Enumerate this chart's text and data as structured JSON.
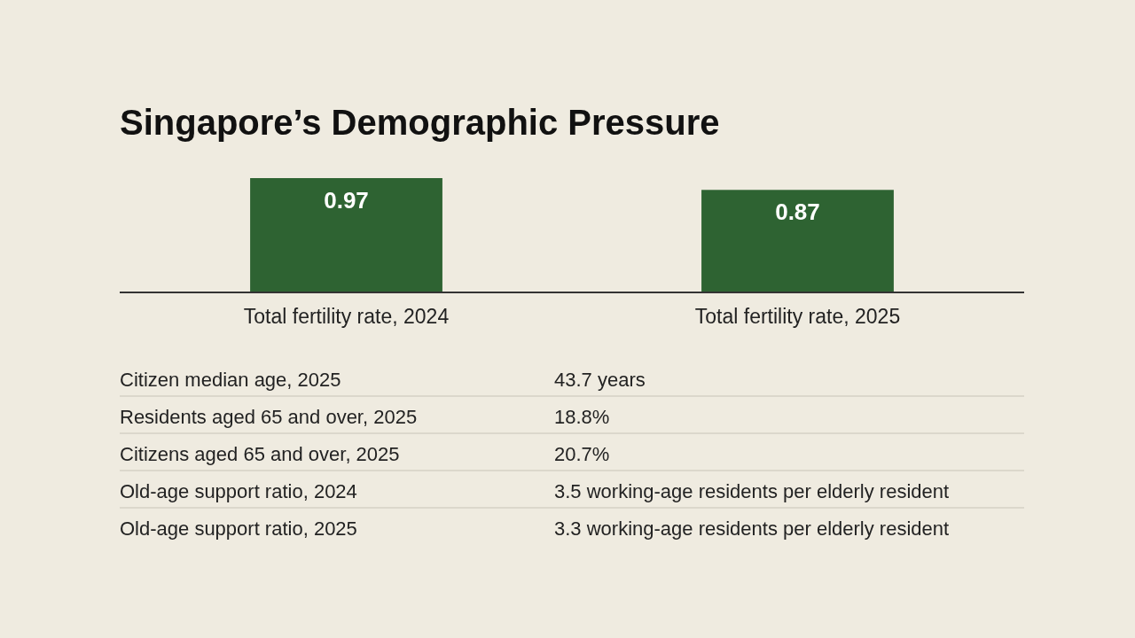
{
  "chart_data": [
    {
      "type": "bar",
      "title": "Singapore’s Demographic Pressure",
      "categories": [
        "Total fertility rate, 2024",
        "Total fertility rate, 2025"
      ],
      "values": [
        0.97,
        0.87
      ],
      "color": "#2e6332",
      "data_labels": true
    },
    {
      "type": "other",
      "annotations": [
        "Citizen median age, 2025",
        "43.7 years",
        "Residents aged 65 and over, 2025",
        "18.8%",
        "Citizens aged 65 and over, 2025",
        "20.7%",
        "Old-age support ratio, 2024",
        "3.5 working-age residents per elderly resident",
        "Old-age support ratio, 2025",
        "3.3 working-age residents per elderly resident"
      ]
    }
  ]
}
